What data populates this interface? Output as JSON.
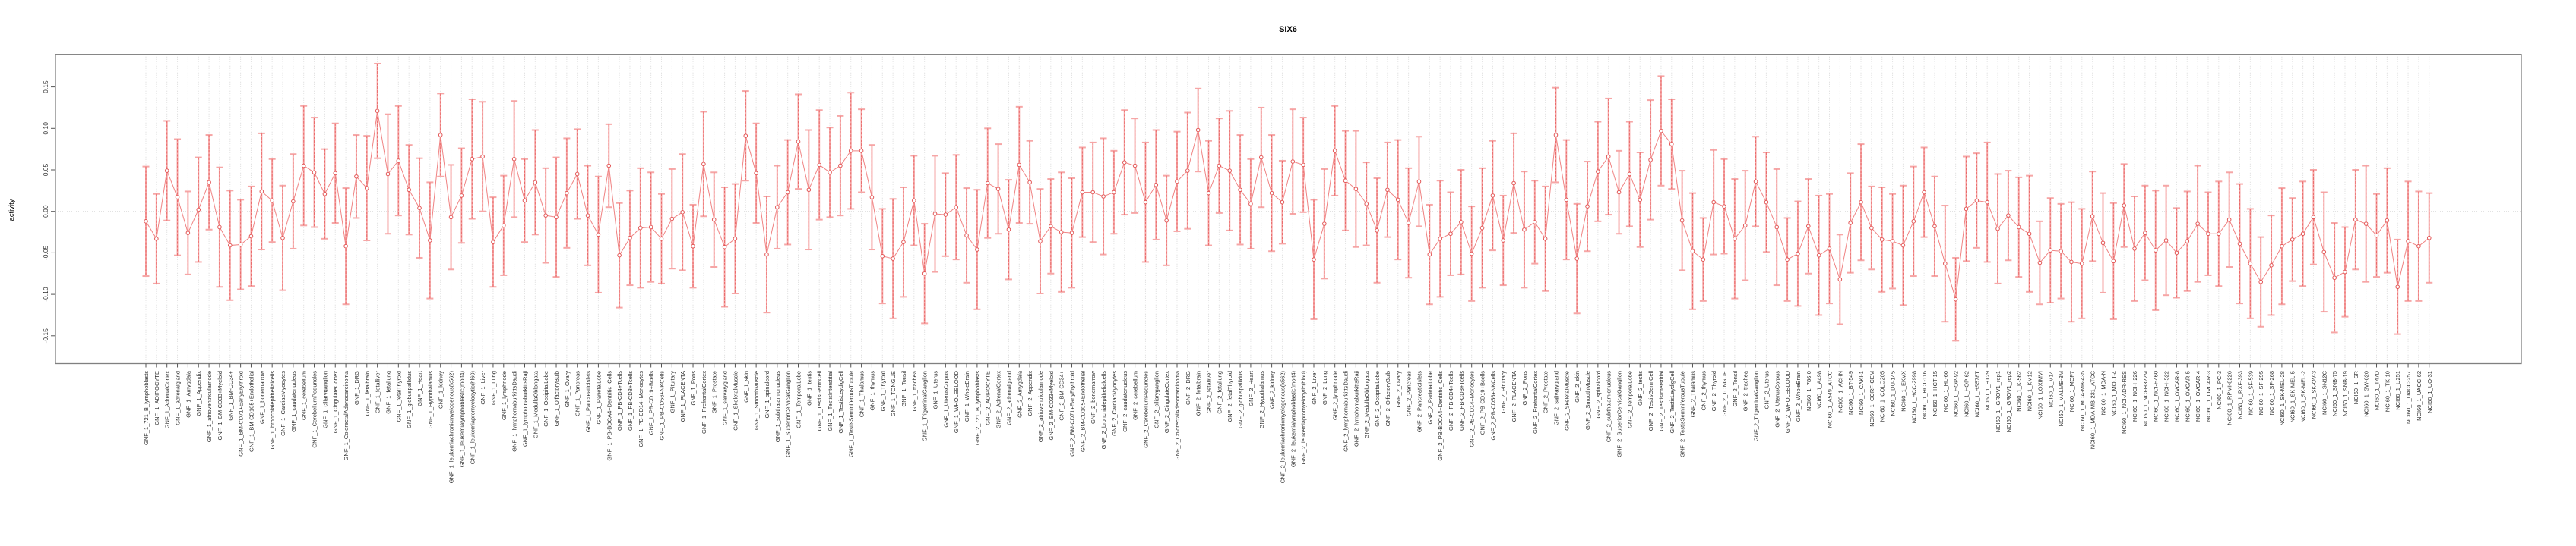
{
  "title": "SIX6",
  "axes": {
    "y_label": "activity",
    "y_tick_labels": [
      "0.15",
      "0.10",
      "0.05",
      "0.00",
      "-0.05",
      "-0.10",
      "-0.15"
    ]
  },
  "chart_data": {
    "type": "line",
    "subtype": "errorbar-series",
    "title": "SIX6",
    "xlabel": "",
    "ylabel": "activity",
    "ylim": [
      -0.185,
      0.19
    ],
    "yticks": [
      0.15,
      0.1,
      0.05,
      0.0,
      -0.05,
      -0.1,
      -0.15
    ],
    "grid": {
      "vertical_per_category": true,
      "horizontal_zero_line": true,
      "style": "dotted-lightgray"
    },
    "legend_position": "none",
    "colors": {
      "marker": "#e25555",
      "error_bar": "#f6a6a6",
      "error_bar_dash": "#e96a6a",
      "series_line": "#f08383",
      "grid": "#d9d9d9",
      "box": "#808080",
      "tick": "#555555",
      "text": "#2e2e2e"
    },
    "categories": [
      "GNF_1_721_B_lymphoblasts",
      "GNF_1_ADIPOCYTE",
      "GNF_1_AdrenalCortex",
      "GNF_1_adrenalgland",
      "GNF_1_Amygdala",
      "GNF_1_Appendix",
      "GNF_1_atrioventricularnode",
      "GNF_1_BM-CD33+Myeloid",
      "GNF_1_BM-CD34+",
      "GNF_1_BM-CD71+EarlyErythroid",
      "GNF_1_BM-CD105+Endothelial",
      "GNF_1_bonemarrow",
      "GNF_1_bronchialepithelialcells",
      "GNF_1_CardiacMyocytes",
      "GNF_1_caudatenucleus",
      "GNF_1_cerebellum",
      "GNF_1_CerebellumPeduncles",
      "GNF_1_ciliaryganglion",
      "GNF_1_CingulateCortex",
      "GNF_1_ColorectalAdenocarcinoma",
      "GNF_1_DRG",
      "GNF_1_fetalbrain",
      "GNF_1_fetalliver",
      "GNF_1_fetallung",
      "GNF_1_fetalThyroid",
      "GNF_1_globuspallidus",
      "GNF_1_Heart",
      "GNF_1_Hypothalamus",
      "GNF_1_kidney",
      "GNF_1_leukemiachronicmyelogenous(k562)",
      "GNF_1_leukemialymphoblastic(molt4)",
      "GNF_1_leukemiapromyelocytic(hl60)",
      "GNF_1_Liver",
      "GNF_1_Lung",
      "GNF_1_lymphnode",
      "GNF_1_lymphomaburkittsDaudi",
      "GNF_1_lymphomaburkittsRaji",
      "GNF_1_MedullaOblongata",
      "GNF_1_OccipitalLobe",
      "GNF_1_OlfactoryBulb",
      "GNF_1_Ovary",
      "GNF_1_Pancreas",
      "GNF_1_PancreaticIslets",
      "GNF_1_ParietalLobe",
      "GNF_1_PB-BDCA4+Dentritic_Cells",
      "GNF_1_PB-CD4+Tcells",
      "GNF_1_PB-CD8+Tcells",
      "GNF_1_PB-CD14+Monocytes",
      "GNF_1_PB-CD19+Bcells",
      "GNF_1_PB-CD56+NKCells",
      "GNF_1_Pituitary",
      "GNF_1_PLACENTA",
      "GNF_1_Pons",
      "GNF_1_PrefrontalCortex",
      "GNF_1_Prostate",
      "GNF_1_salivarygland",
      "GNF_1_SkeletalMuscle",
      "GNF_1_skin",
      "GNF_1_SmoothMuscle",
      "GNF_1_spinalcord",
      "GNF_1_subthalamicnucleus",
      "GNF_1_SuperiorCervicalGanglion",
      "GNF_1_TemporalLobe",
      "GNF_1_testis",
      "GNF_1_TestisGermCell",
      "GNF_1_TestisInterstitial",
      "GNF_1_TestisLeydigCell",
      "GNF_1_TestisSeminiferousTubule",
      "GNF_1_Thalamus",
      "GNF_1_thymus",
      "GNF_1_Thyroid",
      "GNF_1_TONGUE",
      "GNF_1_Tonsil",
      "GNF_1_trachea",
      "GNF_1_TrigeminalGanglion",
      "GNF_1_Uterus",
      "GNF_1_UterusCorpus",
      "GNF_1_WHOLEBLOOD",
      "GNF_1_WholeBrain",
      "GNF_2_721_B_lymphoblasts",
      "GNF_2_ADIPOCYTE",
      "GNF_2_AdrenalCortex",
      "GNF_2_adrenalgland",
      "GNF_2_Amygdala",
      "GNF_2_Appendix",
      "GNF_2_atrioventricularnode",
      "GNF_2_BM-CD33+Myeloid",
      "GNF_2_BM-CD34+",
      "GNF_2_BM-CD71+EarlyErythroid",
      "GNF_2_BM-CD105+Endothelial",
      "GNF_2_bonemarrow",
      "GNF_2_bronchialepithelialcells",
      "GNF_2_CardiacMyocytes",
      "GNF_2_caudatenucleus",
      "GNF_2_cerebellum",
      "GNF_2_CerebellumPeduncles",
      "GNF_2_ciliaryganglion",
      "GNF_2_CingulateCortex",
      "GNF_2_ColorectalAdenocarcinoma",
      "GNF_2_DRG",
      "GNF_2_fetalbrain",
      "GNF_2_fetalliver",
      "GNF_2_fetallung",
      "GNF_2_fetalThyroid",
      "GNF_2_globuspallidus",
      "GNF_2_Heart",
      "GNF_2_Hypothalamus",
      "GNF_2_kidney",
      "GNF_2_leukemiachronicmyelogenous(k562)",
      "GNF_2_leukemialymphoblastic(molt4)",
      "GNF_2_leukemiapromyelocytic(hl60)",
      "GNF_2_Liver",
      "GNF_2_Lung",
      "GNF_2_lymphnode",
      "GNF_2_lymphomaburkittsDaudi",
      "GNF_2_lymphomaburkittsRaji",
      "GNF_2_MedullaOblongata",
      "GNF_2_OccipitalLobe",
      "GNF_2_OlfactoryBulb",
      "GNF_2_Ovary",
      "GNF_2_Pancreas",
      "GNF_2_PancreaticIslets",
      "GNF_2_ParietalLobe",
      "GNF_2_PB-BDCA4+Dentritic_Cells",
      "GNF_2_PB-CD4+Tcells",
      "GNF_2_PB-CD8+Tcells",
      "GNF_2_PB-CD14+Monocytes",
      "GNF_2_PB-CD19+Bcells",
      "GNF_2_PB-CD56+NKCells",
      "GNF_2_Pituitary",
      "GNF_2_PLACENTA",
      "GNF_2_Pons",
      "GNF_2_PrefrontalCortex",
      "GNF_2_Prostate",
      "GNF_2_salivarygland",
      "GNF_2_SkeletalMuscle",
      "GNF_2_skin",
      "GNF_2_SmoothMuscle",
      "GNF_2_spinalcord",
      "GNF_2_subthalamicnucleus",
      "GNF_2_SuperiorCervicalGanglion",
      "GNF_2_TemporalLobe",
      "GNF_2_testis",
      "GNF_2_TestisGermCell",
      "GNF_2_TestisInterstitial",
      "GNF_2_TestisLeydigCell",
      "GNF_2_TestisSeminiferousTubule",
      "GNF_2_Thalamus",
      "GNF_2_thymus",
      "GNF_2_Thyroid",
      "GNF_2_TONGUE",
      "GNF_2_Tonsil",
      "GNF_2_trachea",
      "GNF_2_TrigeminalGanglion",
      "GNF_2_Uterus",
      "GNF_2_UterusCorpus",
      "GNF_2_WHOLEBLOOD",
      "GNF_2_WholeBrain",
      "NCI60_1_786-0",
      "NCI60_1_A498",
      "NCI60_1_A549_ATCC",
      "NCI60_1_ACHN",
      "NCI60_1_BT-549",
      "NCI60_1_CAKI-1",
      "NCI60_1_CCRF-CEM",
      "NCI60_1_COLO205",
      "NCI60_1_DU-145",
      "NCI60_1_EKVX",
      "NCI60_1_HCC-2998",
      "NCI60_1_HCT-116",
      "NCI60_1_HCT-15",
      "NCI60_1_HL-60",
      "NCI60_1_HOP-92",
      "NCI60_1_HOP-62",
      "NCI60_1_HS578T",
      "NCI60_1_HT29",
      "NCI60_1_IGROV1_rep1",
      "NCI60_1_IGROV1_rep2",
      "NCI60_1_K-562",
      "NCI60_1_KM12",
      "NCI60_1_LOXIMVI",
      "NCI60_1_M14",
      "NCI60_1_MALME-3M",
      "NCI60_1_MCF7",
      "NCI60_1_MDA-MB-435",
      "NCI60_1_MDA-MB-231_ATCC",
      "NCI60_1_MDA-N",
      "NCI60_1_MOLT-4",
      "NCI60_1_NCI-ADR-RES",
      "NCI60_1_NCI-H226",
      "NCI60_1_NCI-H322M",
      "NCI60_1_NCI-H460",
      "NCI60_1_NCI-H522",
      "NCI60_1_OVCAR-8",
      "NCI60_1_OVCAR-5",
      "NCI60_1_OVCAR-4",
      "NCI60_1_OVCAR-3",
      "NCI60_1_PC-3",
      "NCI60_1_RPMI-8226",
      "NCI60_1_RXF-393",
      "NCI60_1_SF-539",
      "NCI60_1_SF-295",
      "NCI60_1_SF-268",
      "NCI60_1_SK-MEL-28",
      "NCI60_1_SK-MEL-5",
      "NCI60_1_SK-MEL-2",
      "NCI60_1_SK-OV-3",
      "NCI60_1_SN12C",
      "NCI60_1_SNB-75",
      "NCI60_1_SNB-19",
      "NCI60_1_SR",
      "NCI60_1_SW-620",
      "NCI60_1_T47D",
      "NCI60_1_TK-10",
      "NCI60_1_U251",
      "NCI60_1_UACC-257",
      "NCI60_1_UACC-62",
      "NCI60_1_UO-31"
    ],
    "means": [
      -0.012,
      -0.033,
      0.049,
      0.017,
      -0.026,
      0.002,
      0.035,
      -0.019,
      -0.041,
      -0.04,
      -0.03,
      0.024,
      0.013,
      -0.032,
      0.012,
      0.055,
      0.047,
      0.021,
      0.046,
      -0.042,
      0.042,
      0.028,
      0.121,
      0.045,
      0.061,
      0.026,
      0.004,
      -0.035,
      0.092,
      -0.007,
      0.019,
      0.063,
      0.066,
      -0.037,
      -0.017,
      0.063,
      0.013,
      0.035,
      -0.005,
      -0.007,
      0.022,
      0.045,
      -0.005,
      -0.028,
      0.055,
      -0.053,
      -0.032,
      -0.02,
      -0.019,
      -0.033,
      -0.009,
      -0.001,
      -0.042,
      0.057,
      -0.01,
      -0.043,
      -0.033,
      0.091,
      0.046,
      -0.052,
      0.005,
      0.023,
      0.084,
      0.026,
      0.056,
      0.047,
      0.055,
      0.073,
      0.073,
      0.017,
      -0.054,
      -0.057,
      -0.037,
      0.013,
      -0.075,
      -0.003,
      -0.004,
      0.005,
      -0.029,
      -0.046,
      0.034,
      0.027,
      -0.022,
      0.056,
      0.035,
      -0.036,
      -0.018,
      -0.025,
      -0.026,
      0.023,
      0.023,
      0.018,
      0.023,
      0.059,
      0.055,
      0.011,
      0.032,
      -0.011,
      0.036,
      0.049,
      0.098,
      0.022,
      0.055,
      0.049,
      0.026,
      0.009,
      0.065,
      0.022,
      0.011,
      0.06,
      0.056,
      -0.058,
      -0.015,
      0.073,
      0.037,
      0.027,
      0.009,
      -0.023,
      0.026,
      0.014,
      -0.014,
      0.036,
      -0.052,
      -0.033,
      -0.027,
      -0.013,
      -0.051,
      -0.02,
      0.019,
      -0.035,
      0.034,
      -0.022,
      -0.013,
      -0.033,
      0.092,
      0.014,
      -0.057,
      0.006,
      0.048,
      0.066,
      0.023,
      0.045,
      0.014,
      0.062,
      0.097,
      0.081,
      -0.011,
      -0.048,
      -0.058,
      0.011,
      0.006,
      -0.033,
      -0.017,
      0.036,
      0.011,
      -0.019,
      -0.058,
      -0.051,
      -0.018,
      -0.053,
      -0.045,
      -0.082,
      -0.014,
      0.011,
      -0.02,
      -0.034,
      -0.036,
      -0.041,
      -0.012,
      0.023,
      -0.018,
      -0.063,
      -0.106,
      0.003,
      0.013,
      0.011,
      -0.021,
      -0.005,
      -0.019,
      -0.027,
      -0.062,
      -0.047,
      -0.048,
      -0.061,
      -0.063,
      -0.006,
      -0.038,
      -0.06,
      0.007,
      -0.045,
      -0.026,
      -0.047,
      -0.035,
      -0.05,
      -0.036,
      -0.015,
      -0.027,
      -0.027,
      -0.01,
      -0.039,
      -0.063,
      -0.085,
      -0.065,
      -0.042,
      -0.034,
      -0.027,
      -0.007,
      -0.049,
      -0.08,
      -0.073,
      -0.01,
      -0.015,
      -0.029,
      -0.011,
      -0.091,
      -0.036,
      -0.042,
      -0.032
    ],
    "err_half_pattern": [
      0.066,
      0.054,
      0.06,
      0.07,
      0.05,
      0.063,
      0.057,
      0.072
    ]
  }
}
